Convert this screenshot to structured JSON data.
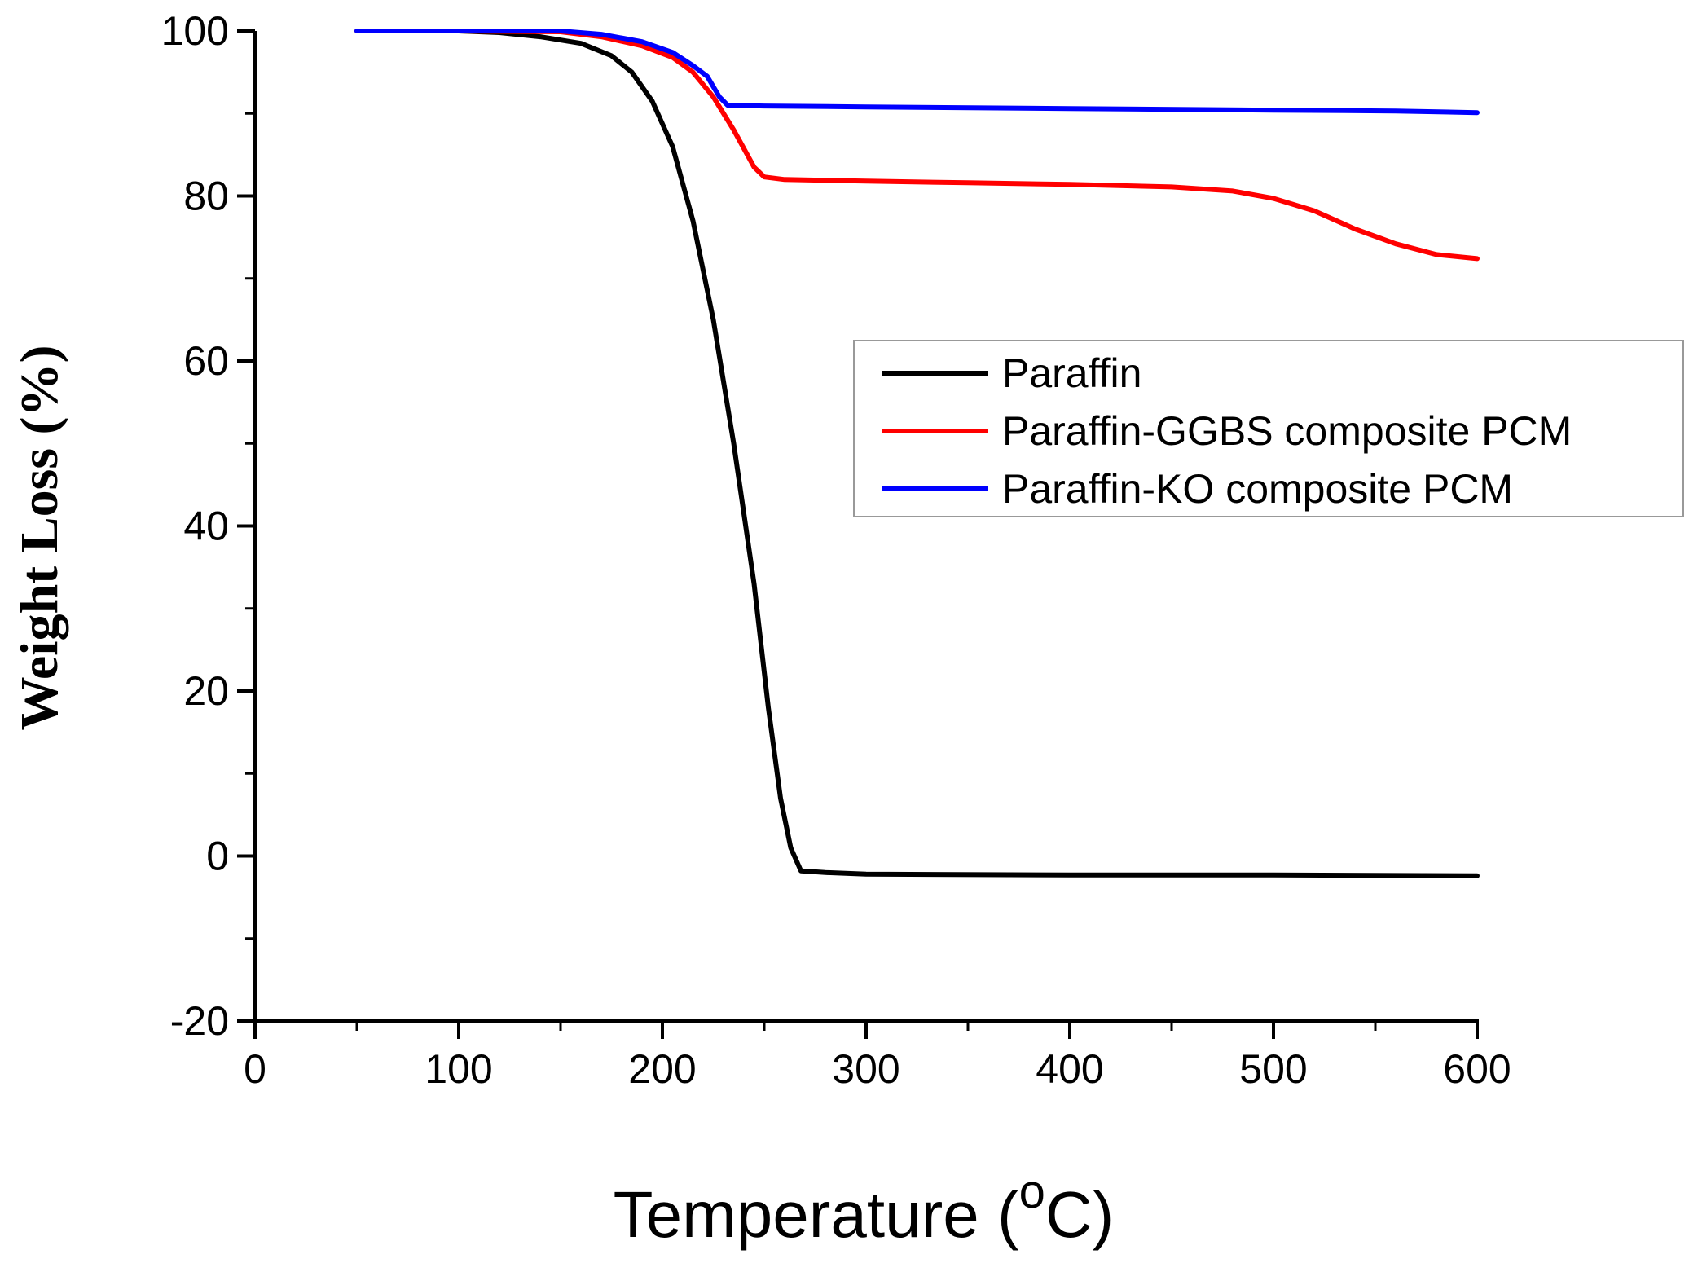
{
  "chart_data": {
    "type": "line",
    "title": "",
    "xlabel": "Temperature (",
    "xlabel_superscript": "o",
    "xlabel_unit": "C)",
    "ylabel": "Weight Loss (%)",
    "xlim": [
      0,
      600
    ],
    "ylim": [
      -20,
      100
    ],
    "x_ticks": [
      "0",
      "100",
      "200",
      "300",
      "400",
      "500",
      "600"
    ],
    "y_ticks": [
      "100",
      "80",
      "60",
      "40",
      "20",
      "0",
      "-20"
    ],
    "grid": false,
    "legend_position": "right-middle",
    "series": [
      {
        "name": "Paraffin",
        "color": "#000000",
        "points": [
          [
            50,
            100
          ],
          [
            100,
            100
          ],
          [
            120,
            99.8
          ],
          [
            140,
            99.3
          ],
          [
            160,
            98.5
          ],
          [
            175,
            97
          ],
          [
            185,
            95
          ],
          [
            195,
            91.5
          ],
          [
            205,
            86
          ],
          [
            215,
            77
          ],
          [
            225,
            65
          ],
          [
            235,
            50
          ],
          [
            245,
            33
          ],
          [
            252,
            18
          ],
          [
            258,
            7
          ],
          [
            263,
            1
          ],
          [
            268,
            -1.8
          ],
          [
            280,
            -2
          ],
          [
            300,
            -2.2
          ],
          [
            400,
            -2.3
          ],
          [
            500,
            -2.3
          ],
          [
            600,
            -2.4
          ]
        ]
      },
      {
        "name": "Paraffin-GGBS composite PCM",
        "color": "#ff0000",
        "points": [
          [
            50,
            100
          ],
          [
            100,
            100
          ],
          [
            150,
            99.9
          ],
          [
            170,
            99.3
          ],
          [
            190,
            98.2
          ],
          [
            205,
            96.8
          ],
          [
            215,
            95
          ],
          [
            225,
            92
          ],
          [
            235,
            88
          ],
          [
            245,
            83.5
          ],
          [
            250,
            82.3
          ],
          [
            260,
            82
          ],
          [
            300,
            81.8
          ],
          [
            350,
            81.6
          ],
          [
            400,
            81.4
          ],
          [
            450,
            81.1
          ],
          [
            480,
            80.6
          ],
          [
            500,
            79.7
          ],
          [
            520,
            78.2
          ],
          [
            540,
            76
          ],
          [
            560,
            74.2
          ],
          [
            580,
            72.9
          ],
          [
            600,
            72.4
          ]
        ]
      },
      {
        "name": "Paraffin-KO composite PCM",
        "color": "#0000ff",
        "points": [
          [
            50,
            100
          ],
          [
            100,
            100
          ],
          [
            150,
            100
          ],
          [
            170,
            99.6
          ],
          [
            190,
            98.7
          ],
          [
            205,
            97.4
          ],
          [
            215,
            95.8
          ],
          [
            222,
            94.5
          ],
          [
            228,
            92
          ],
          [
            232,
            91
          ],
          [
            250,
            90.9
          ],
          [
            300,
            90.8
          ],
          [
            400,
            90.6
          ],
          [
            500,
            90.4
          ],
          [
            560,
            90.3
          ],
          [
            600,
            90.1
          ]
        ]
      }
    ]
  }
}
